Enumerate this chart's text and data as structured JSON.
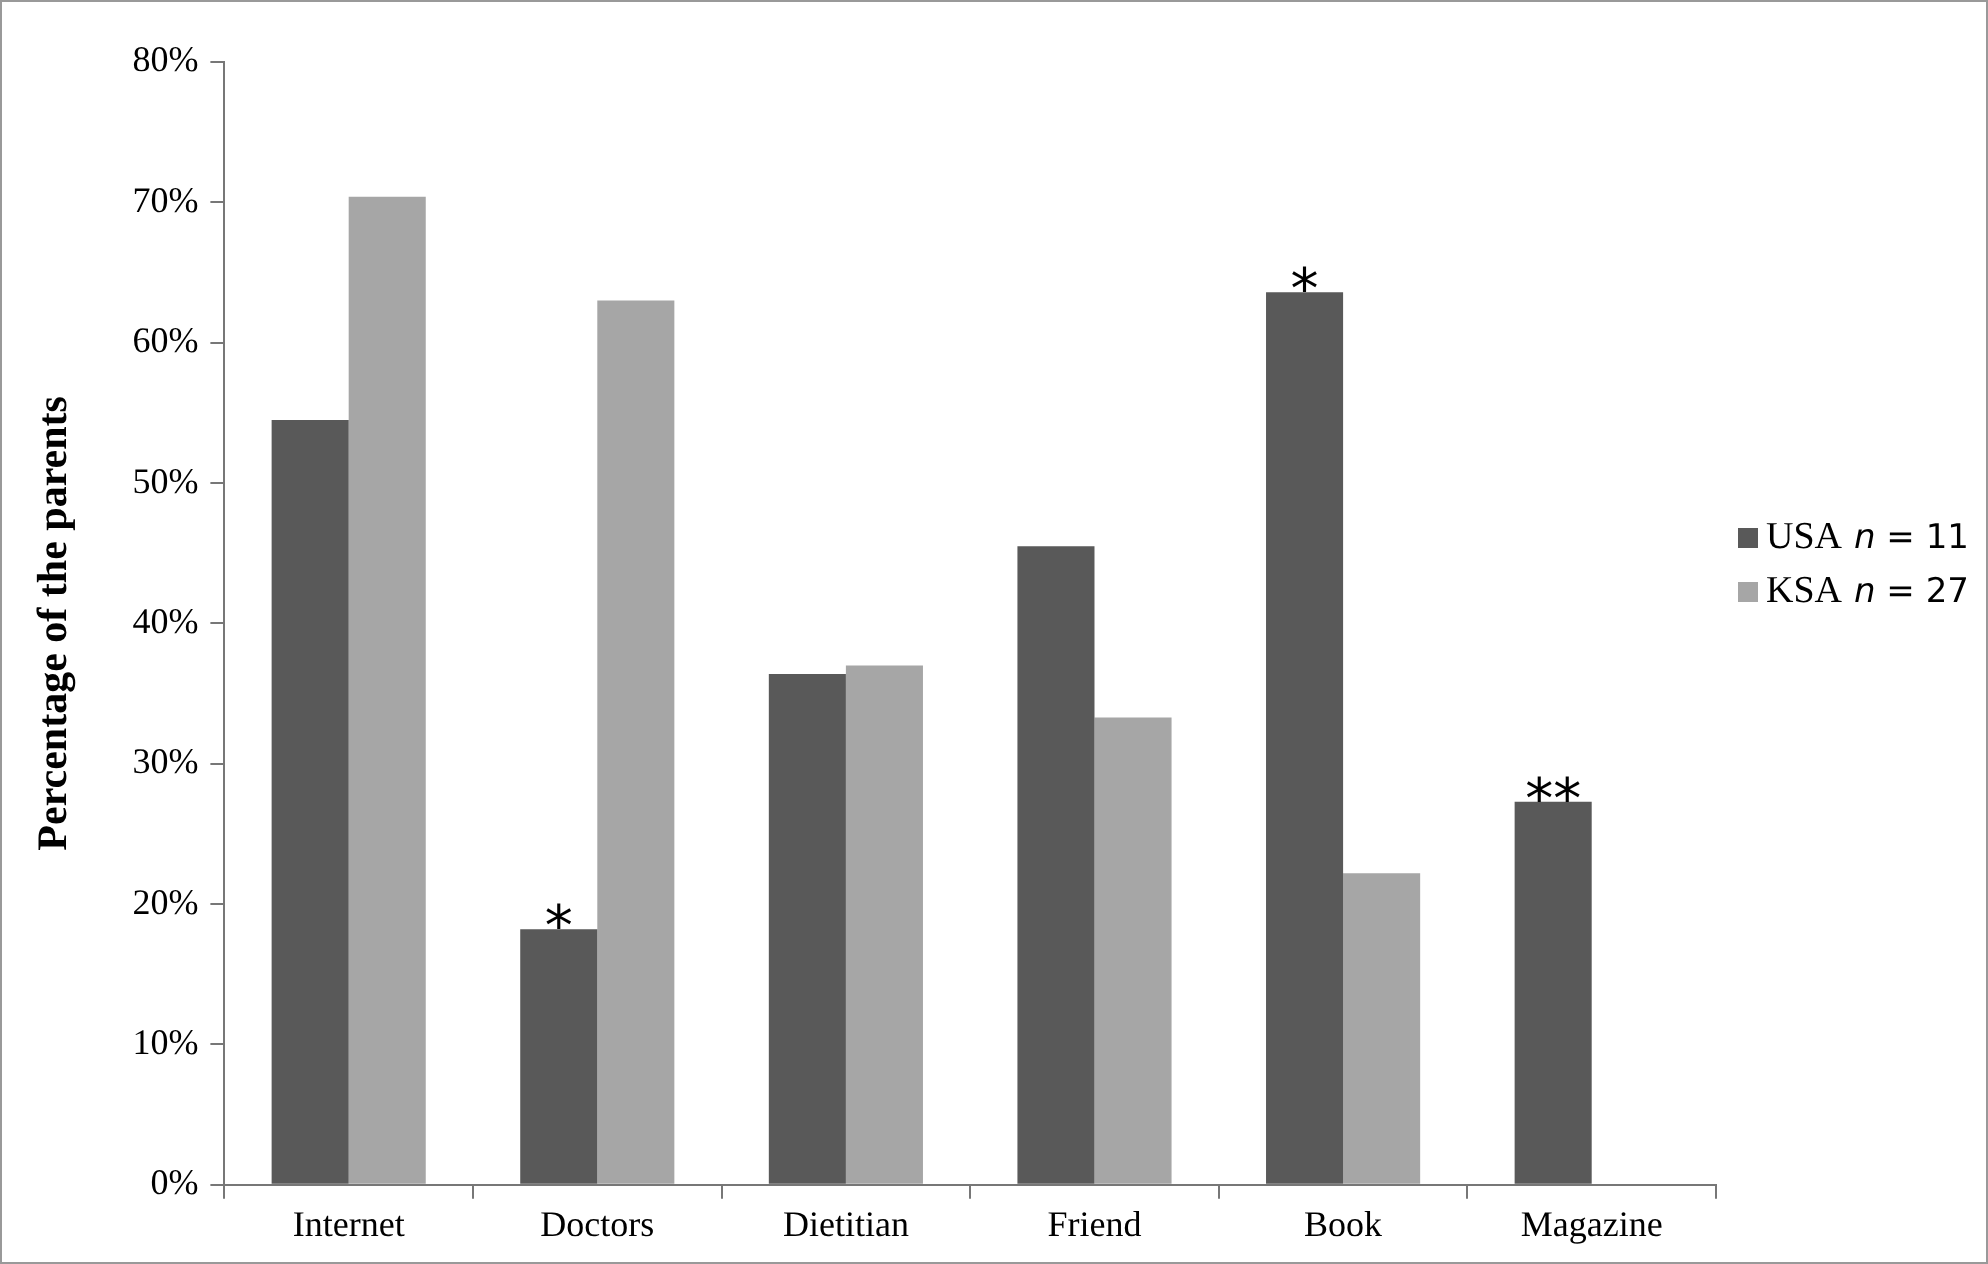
{
  "chart_data": {
    "type": "bar",
    "ylabel": "Percentage of the parents",
    "categories": [
      "Internet",
      "Doctors",
      "Dietitian",
      "Friend",
      "Book",
      "Magazine"
    ],
    "series": [
      {
        "name": "USA",
        "color": "#595959",
        "values": [
          54.5,
          18.2,
          36.4,
          45.5,
          63.6,
          27.3
        ]
      },
      {
        "name": "KSA",
        "color": "#a6a6a6",
        "values": [
          70.4,
          63.0,
          37.0,
          33.3,
          22.2,
          0
        ]
      }
    ],
    "ylim": [
      0,
      80
    ],
    "yticks": [
      {
        "value": 0,
        "label": "0%"
      },
      {
        "value": 10,
        "label": "10%"
      },
      {
        "value": 20,
        "label": "20%"
      },
      {
        "value": 30,
        "label": "30%"
      },
      {
        "value": 40,
        "label": "40%"
      },
      {
        "value": 50,
        "label": "50%"
      },
      {
        "value": 60,
        "label": "60%"
      },
      {
        "value": 70,
        "label": "70%"
      },
      {
        "value": 80,
        "label": "80%"
      }
    ],
    "grid": false,
    "legend": "right",
    "annotations": [
      "n = 11",
      "n = 27",
      {
        "text": "*",
        "x": "Doctors",
        "y": 18.2
      },
      {
        "text": "*",
        "x": "Book",
        "y": 63.6
      },
      {
        "text": "**",
        "x": "Magazine",
        "y": 27.3
      }
    ]
  }
}
